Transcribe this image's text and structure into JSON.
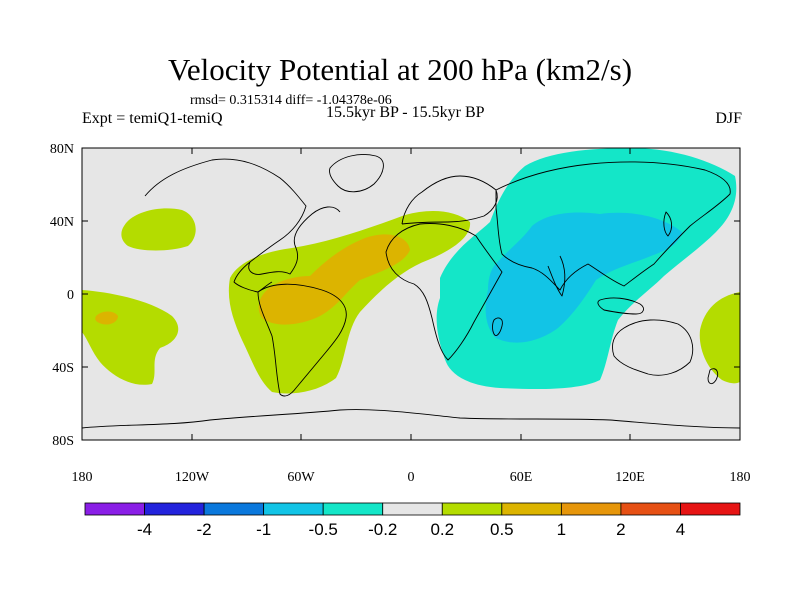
{
  "map": {
    "title": "Velocity Potential at 200 hPa (km2/s)",
    "stats": "rmsd= 0.315314 diff= -1.04378e-06",
    "left_label": "Expt = temiQ1-temiQ",
    "center_label": "15.5kyr BP - 15.5kyr BP",
    "right_label": "DJF",
    "lat_labels": [
      "80N",
      "40N",
      "0",
      "40S",
      "80S"
    ],
    "lon_labels": [
      "180",
      "120W",
      "60W",
      "0",
      "60E",
      "120E",
      "180"
    ]
  },
  "colorbar": {
    "colors": [
      "#8a1ee6",
      "#2323dc",
      "#0a78dc",
      "#12c4e6",
      "#14e6c8",
      "#e6e6e6",
      "#b4dc00",
      "#dcb400",
      "#e6960a",
      "#e65014",
      "#e61414"
    ],
    "labels": [
      "-4",
      "-2",
      "-1",
      "-0.5",
      "-0.2",
      "0.2",
      "0.5",
      "1",
      "2",
      "4"
    ]
  },
  "fill_colors": {
    "background": "#e6e6e6",
    "positive_weak": "#b4dc00",
    "positive_mid": "#dcb400",
    "positive_strong": "#e6960a",
    "negative_weak": "#14e6c8",
    "negative_mid": "#12c4e6"
  }
}
